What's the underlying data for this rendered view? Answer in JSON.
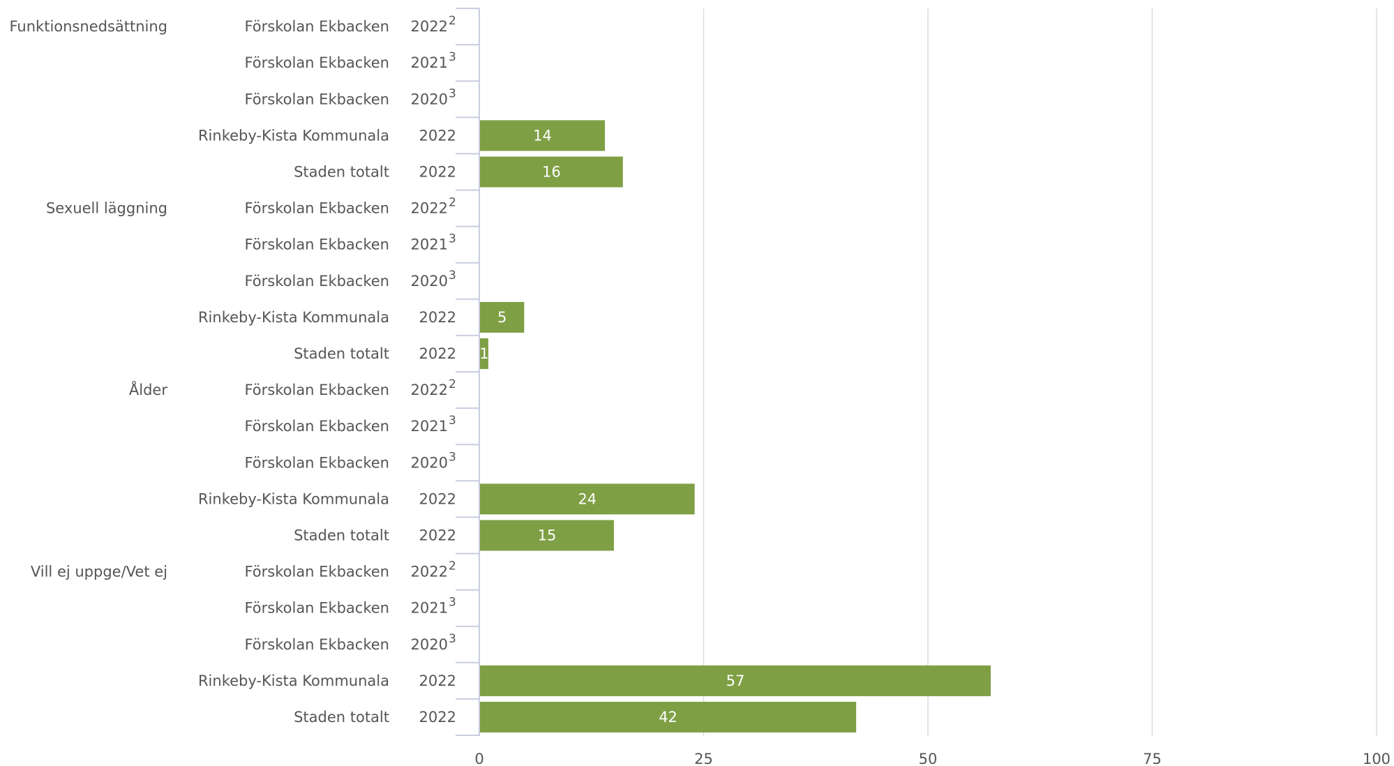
{
  "chart_data": {
    "type": "bar",
    "orientation": "horizontal",
    "xlim": [
      0,
      100
    ],
    "x_ticks": [
      0,
      25,
      50,
      75,
      100
    ],
    "grid": true,
    "bar_color": "#7f9f44",
    "groups": [
      {
        "label": "Funktionsnedsättning",
        "rows": [
          {
            "unit": "Förskolan Ekbacken",
            "year": "2022",
            "note": "2",
            "value": null
          },
          {
            "unit": "Förskolan Ekbacken",
            "year": "2021",
            "note": "3",
            "value": null
          },
          {
            "unit": "Förskolan Ekbacken",
            "year": "2020",
            "note": "3",
            "value": null
          },
          {
            "unit": "Rinkeby-Kista Kommunala",
            "year": "2022",
            "note": "",
            "value": 14
          },
          {
            "unit": "Staden totalt",
            "year": "2022",
            "note": "",
            "value": 16
          }
        ]
      },
      {
        "label": "Sexuell läggning",
        "rows": [
          {
            "unit": "Förskolan Ekbacken",
            "year": "2022",
            "note": "2",
            "value": null
          },
          {
            "unit": "Förskolan Ekbacken",
            "year": "2021",
            "note": "3",
            "value": null
          },
          {
            "unit": "Förskolan Ekbacken",
            "year": "2020",
            "note": "3",
            "value": null
          },
          {
            "unit": "Rinkeby-Kista Kommunala",
            "year": "2022",
            "note": "",
            "value": 5
          },
          {
            "unit": "Staden totalt",
            "year": "2022",
            "note": "",
            "value": 1
          }
        ]
      },
      {
        "label": "Ålder",
        "rows": [
          {
            "unit": "Förskolan Ekbacken",
            "year": "2022",
            "note": "2",
            "value": null
          },
          {
            "unit": "Förskolan Ekbacken",
            "year": "2021",
            "note": "3",
            "value": null
          },
          {
            "unit": "Förskolan Ekbacken",
            "year": "2020",
            "note": "3",
            "value": null
          },
          {
            "unit": "Rinkeby-Kista Kommunala",
            "year": "2022",
            "note": "",
            "value": 24
          },
          {
            "unit": "Staden totalt",
            "year": "2022",
            "note": "",
            "value": 15
          }
        ]
      },
      {
        "label": "Vill ej uppge/Vet ej",
        "rows": [
          {
            "unit": "Förskolan Ekbacken",
            "year": "2022",
            "note": "2",
            "value": null
          },
          {
            "unit": "Förskolan Ekbacken",
            "year": "2021",
            "note": "3",
            "value": null
          },
          {
            "unit": "Förskolan Ekbacken",
            "year": "2020",
            "note": "3",
            "value": null
          },
          {
            "unit": "Rinkeby-Kista Kommunala",
            "year": "2022",
            "note": "",
            "value": 57
          },
          {
            "unit": "Staden totalt",
            "year": "2022",
            "note": "",
            "value": 42
          }
        ]
      }
    ]
  }
}
